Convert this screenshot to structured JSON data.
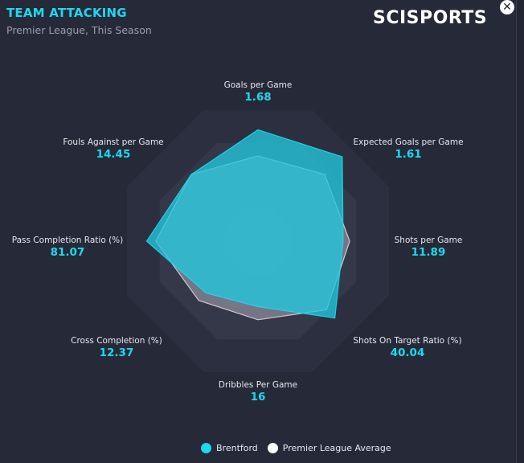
{
  "header": {
    "title": "TEAM ATTACKING",
    "subtitle": "Premier League, This Season",
    "logo_text": "SCISPORTS",
    "close_icon": "close-icon"
  },
  "colors": {
    "accent": "#1ed8ee",
    "team_fill": "#22c6dc",
    "average_fill": "#a9a7b6",
    "ring_dark": "#2c2f3f",
    "ring_light": "#353849"
  },
  "chart_data": {
    "type": "radar",
    "axes": [
      {
        "label": "Goals per Game",
        "value": "1.68"
      },
      {
        "label": "Expected Goals per Game",
        "value": "1.61"
      },
      {
        "label": "Shots per Game",
        "value": "11.89"
      },
      {
        "label": "Shots On Target Ratio (%)",
        "value": "40.04"
      },
      {
        "label": "Dribbles Per Game",
        "value": "16"
      },
      {
        "label": "Cross Completion (%)",
        "value": "12.37"
      },
      {
        "label": "Pass Completion Ratio (%)",
        "value": "81.07"
      },
      {
        "label": "Fouls Against per Game",
        "value": "14.45"
      }
    ],
    "scale_max": 1.0,
    "rings": 4,
    "series": [
      {
        "name": "Brentford",
        "normalized": [
          0.85,
          0.91,
          0.65,
          0.83,
          0.5,
          0.56,
          0.85,
          0.72
        ]
      },
      {
        "name": "Premier League Average",
        "normalized": [
          0.65,
          0.72,
          0.7,
          0.74,
          0.6,
          0.64,
          0.78,
          0.72
        ]
      }
    ],
    "legend": [
      "Brentford",
      "Premier League Average"
    ],
    "legend_position": "bottom-center"
  }
}
